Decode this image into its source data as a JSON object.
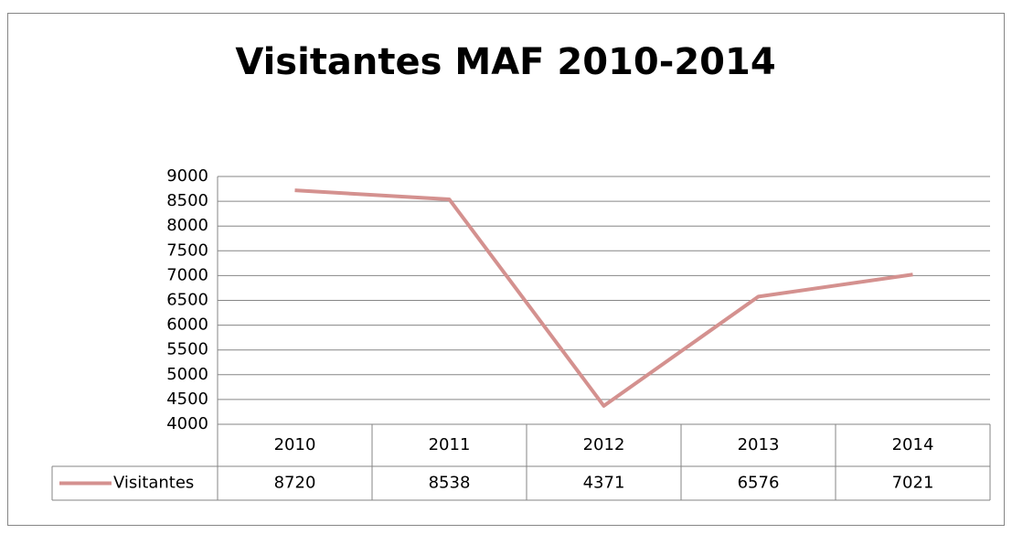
{
  "chart_data": {
    "type": "line",
    "title": "Visitantes MAF 2010-2014",
    "categories": [
      "2010",
      "2011",
      "2012",
      "2013",
      "2014"
    ],
    "series": [
      {
        "name": "Visitantes",
        "color": "#d4918f",
        "values": [
          8720,
          8538,
          4371,
          6576,
          7021
        ]
      }
    ],
    "ylim": [
      4000,
      9000
    ],
    "yticks": [
      4000,
      4500,
      5000,
      5500,
      6000,
      6500,
      7000,
      7500,
      8000,
      8500,
      9000
    ],
    "grid": true,
    "data_table": true
  }
}
